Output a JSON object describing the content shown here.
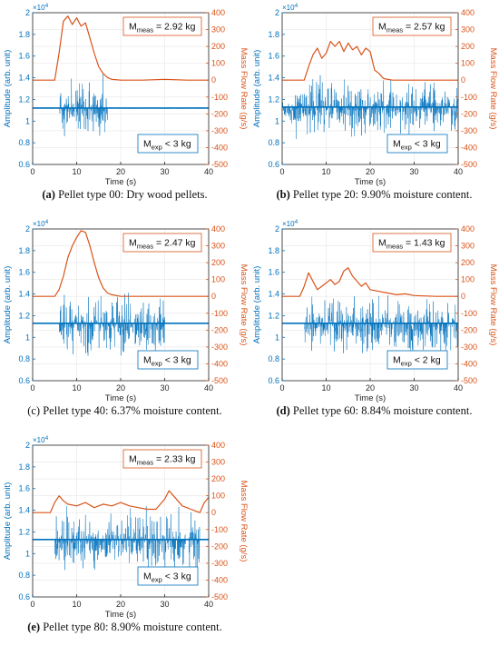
{
  "axes": {
    "xlabel": "Time (s)",
    "ylabel_left": "Amplitude (arb. unit)",
    "ylabel_right": "Mass Flow Rate (g/s)",
    "left_exponent": "×10",
    "left_exponent_power": "4",
    "x_ticks": [
      "0",
      "10",
      "20",
      "30",
      "40"
    ],
    "left_ticks": [
      "0.6",
      "0.8",
      "1",
      "1.2",
      "1.4",
      "1.6",
      "1.8",
      "2"
    ],
    "right_ticks": [
      "-500",
      "-400",
      "-300",
      "-200",
      "-100",
      "0",
      "100",
      "200",
      "300",
      "400"
    ]
  },
  "colors": {
    "amplitude": "#0072BD",
    "flow": "#D95319",
    "axis": "#262626"
  },
  "chart_data": [
    {
      "type": "line",
      "panel_label": "(a)",
      "caption_text": " Pellet type 00: Dry wood pellets.",
      "label_bold": true,
      "meas_text": "M",
      "meas_sub": "meas",
      "meas_value": " = 2.92 kg",
      "exp_text": "M",
      "exp_sub": "exp",
      "exp_value": " < 3 kg",
      "xlim": [
        0,
        40
      ],
      "ylim_left": [
        0.6,
        2.0
      ],
      "ylim_right": [
        -500,
        400
      ],
      "amplitude_baseline": 1.12,
      "amplitude_active_range": [
        6,
        17
      ],
      "flow": {
        "x": [
          0,
          5,
          6,
          7,
          8,
          9,
          10,
          11,
          12,
          13,
          14,
          15,
          16,
          17,
          18,
          20,
          25,
          30,
          35,
          40
        ],
        "y": [
          0,
          0,
          160,
          350,
          380,
          330,
          370,
          320,
          340,
          250,
          160,
          80,
          40,
          15,
          5,
          0,
          0,
          5,
          0,
          0
        ]
      }
    },
    {
      "type": "line",
      "panel_label": "(b)",
      "caption_text": " Pellet type 20: 9.90% moisture content.",
      "label_bold": true,
      "meas_text": "M",
      "meas_sub": "meas",
      "meas_value": " = 2.57 kg",
      "exp_text": "M",
      "exp_sub": "exp",
      "exp_value": " < 3 kg",
      "xlim": [
        0,
        40
      ],
      "ylim_left": [
        0.6,
        2.0
      ],
      "ylim_right": [
        -500,
        400
      ],
      "amplitude_baseline": 1.13,
      "amplitude_active_range": [
        0,
        40
      ],
      "flow": {
        "x": [
          0,
          5,
          6,
          7,
          8,
          9,
          10,
          11,
          12,
          13,
          14,
          15,
          16,
          17,
          18,
          19,
          20,
          21,
          22,
          23,
          25,
          30,
          40
        ],
        "y": [
          0,
          0,
          80,
          150,
          190,
          130,
          160,
          230,
          200,
          230,
          170,
          220,
          180,
          200,
          150,
          190,
          170,
          60,
          40,
          10,
          0,
          0,
          0
        ]
      }
    },
    {
      "type": "line",
      "panel_label": "(c)",
      "caption_text": " Pellet type 40: 6.37% moisture content.",
      "label_bold": false,
      "meas_text": "M",
      "meas_sub": "meas",
      "meas_value": " = 2.47 kg",
      "exp_text": "M",
      "exp_sub": "exp",
      "exp_value": " < 3 kg",
      "xlim": [
        0,
        40
      ],
      "ylim_left": [
        0.6,
        2.0
      ],
      "ylim_right": [
        -500,
        400
      ],
      "amplitude_baseline": 1.13,
      "amplitude_active_range": [
        6,
        30
      ],
      "flow": {
        "x": [
          0,
          5,
          6,
          7,
          8,
          9,
          10,
          11,
          12,
          13,
          14,
          15,
          16,
          17,
          18,
          20,
          25,
          30,
          40
        ],
        "y": [
          0,
          0,
          40,
          120,
          230,
          300,
          350,
          390,
          380,
          300,
          200,
          110,
          50,
          20,
          10,
          0,
          0,
          0,
          0
        ]
      }
    },
    {
      "type": "line",
      "panel_label": "(d)",
      "caption_text": " Pellet type 60: 8.84% moisture content.",
      "label_bold": true,
      "meas_text": "M",
      "meas_sub": "meas",
      "meas_value": " = 1.43 kg",
      "exp_text": "M",
      "exp_sub": "exp",
      "exp_value": " < 2 kg",
      "xlim": [
        0,
        40
      ],
      "ylim_left": [
        0.6,
        2.0
      ],
      "ylim_right": [
        -500,
        400
      ],
      "amplitude_baseline": 1.13,
      "amplitude_active_range": [
        5,
        40
      ],
      "flow": {
        "x": [
          0,
          4,
          5,
          6,
          7,
          8,
          9,
          10,
          11,
          12,
          13,
          14,
          15,
          16,
          17,
          18,
          19,
          20,
          22,
          24,
          26,
          28,
          30,
          35,
          40
        ],
        "y": [
          0,
          0,
          60,
          140,
          90,
          40,
          60,
          80,
          100,
          70,
          90,
          150,
          170,
          120,
          90,
          60,
          80,
          40,
          30,
          20,
          10,
          15,
          5,
          0,
          0
        ]
      }
    },
    {
      "type": "line",
      "panel_label": "(e)",
      "caption_text": " Pellet type 80: 8.90% moisture content.",
      "label_bold": true,
      "meas_text": "M",
      "meas_sub": "meas",
      "meas_value": " = 2.33 kg",
      "exp_text": "M",
      "exp_sub": "exp",
      "exp_value": " < 3 kg",
      "xlim": [
        0,
        40
      ],
      "ylim_left": [
        0.6,
        2.0
      ],
      "ylim_right": [
        -500,
        400
      ],
      "amplitude_baseline": 1.13,
      "amplitude_active_range": [
        5,
        38
      ],
      "flow": {
        "x": [
          0,
          4,
          5,
          6,
          7,
          8,
          10,
          12,
          14,
          16,
          18,
          20,
          22,
          24,
          26,
          28,
          30,
          31,
          32,
          33,
          34,
          35,
          36,
          37,
          38,
          39,
          40
        ],
        "y": [
          0,
          0,
          60,
          100,
          70,
          50,
          40,
          60,
          30,
          50,
          40,
          60,
          40,
          30,
          20,
          20,
          80,
          130,
          100,
          70,
          40,
          30,
          20,
          10,
          0,
          60,
          90
        ]
      }
    }
  ]
}
